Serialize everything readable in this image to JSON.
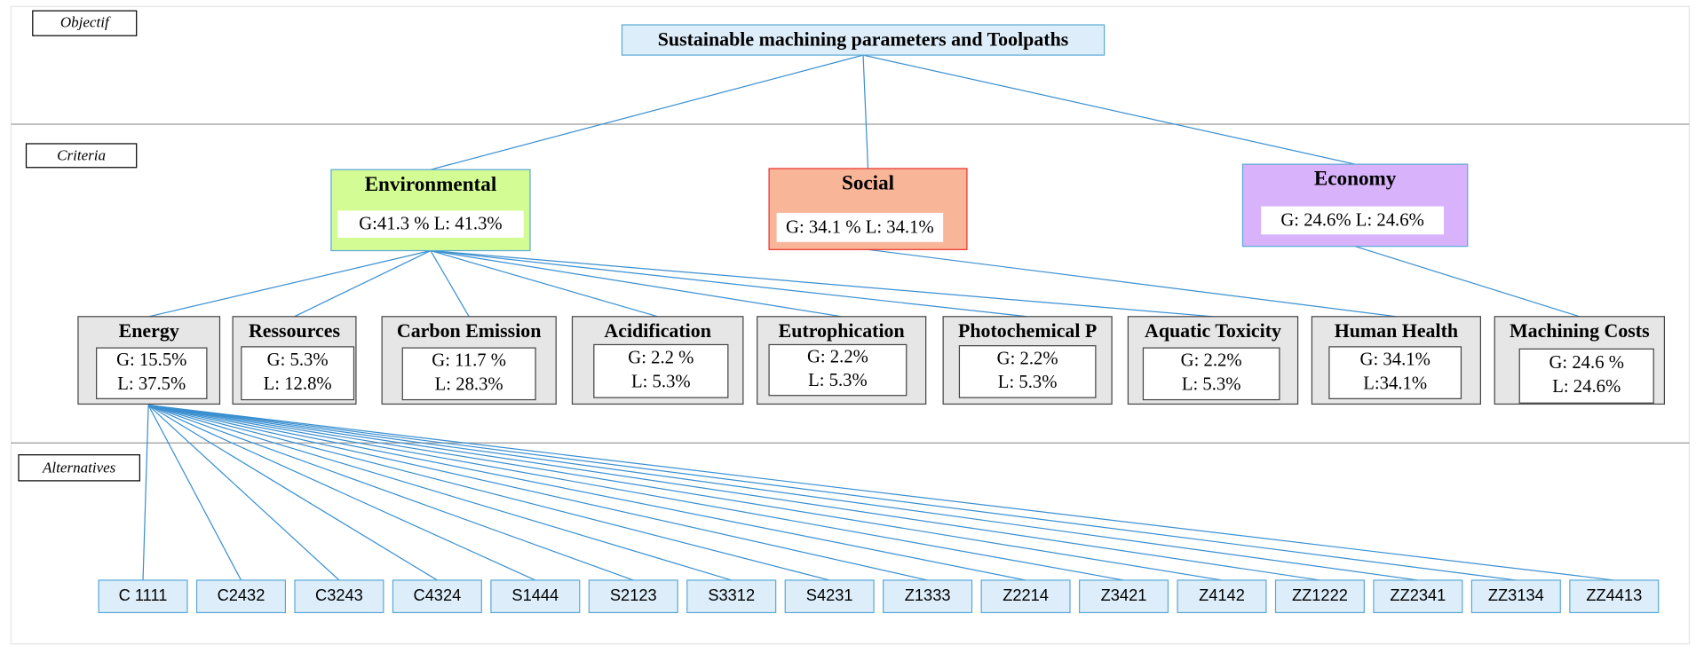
{
  "levels": {
    "objective": "Objectif",
    "criteria": "Criteria",
    "alternatives": "Alternatives"
  },
  "objective": "Sustainable machining parameters and Toolpaths",
  "criteria": [
    {
      "name": "Environmental",
      "weights": "G:41.3 % L: 41.3%"
    },
    {
      "name": "Social",
      "weights": "G: 34.1 % L: 34.1%"
    },
    {
      "name": "Economy",
      "weights": "G: 24.6% L: 24.6%"
    }
  ],
  "subcriteria": [
    {
      "name": "Energy",
      "g": "G: 15.5%",
      "l": "L: 37.5%"
    },
    {
      "name": "Ressources",
      "g": "G: 5.3%",
      "l": "L: 12.8%"
    },
    {
      "name": "Carbon Emission",
      "g": "G: 11.7 %",
      "l": "L: 28.3%"
    },
    {
      "name": "Acidification",
      "g": "G: 2.2 %",
      "l": "L: 5.3%"
    },
    {
      "name": "Eutrophication",
      "g": "G: 2.2%",
      "l": "L: 5.3%"
    },
    {
      "name": "Photochemical P",
      "g": "G: 2.2%",
      "l": "L: 5.3%"
    },
    {
      "name": "Aquatic Toxicity",
      "g": "G: 2.2%",
      "l": "L: 5.3%"
    },
    {
      "name": "Human Health",
      "g": "G: 34.1%",
      "l": "L:34.1%"
    },
    {
      "name": "Machining Costs",
      "g": "G: 24.6 %",
      "l": "L: 24.6%"
    }
  ],
  "alternatives": [
    "C 1111",
    "C2432",
    "C3243",
    "C4324",
    "S1444",
    "S2123",
    "S3312",
    "S4231",
    "Z1333",
    "Z2214",
    "Z3421",
    "Z4142",
    "ZZ1222",
    "ZZ2341",
    "ZZ3134",
    "ZZ4413"
  ]
}
